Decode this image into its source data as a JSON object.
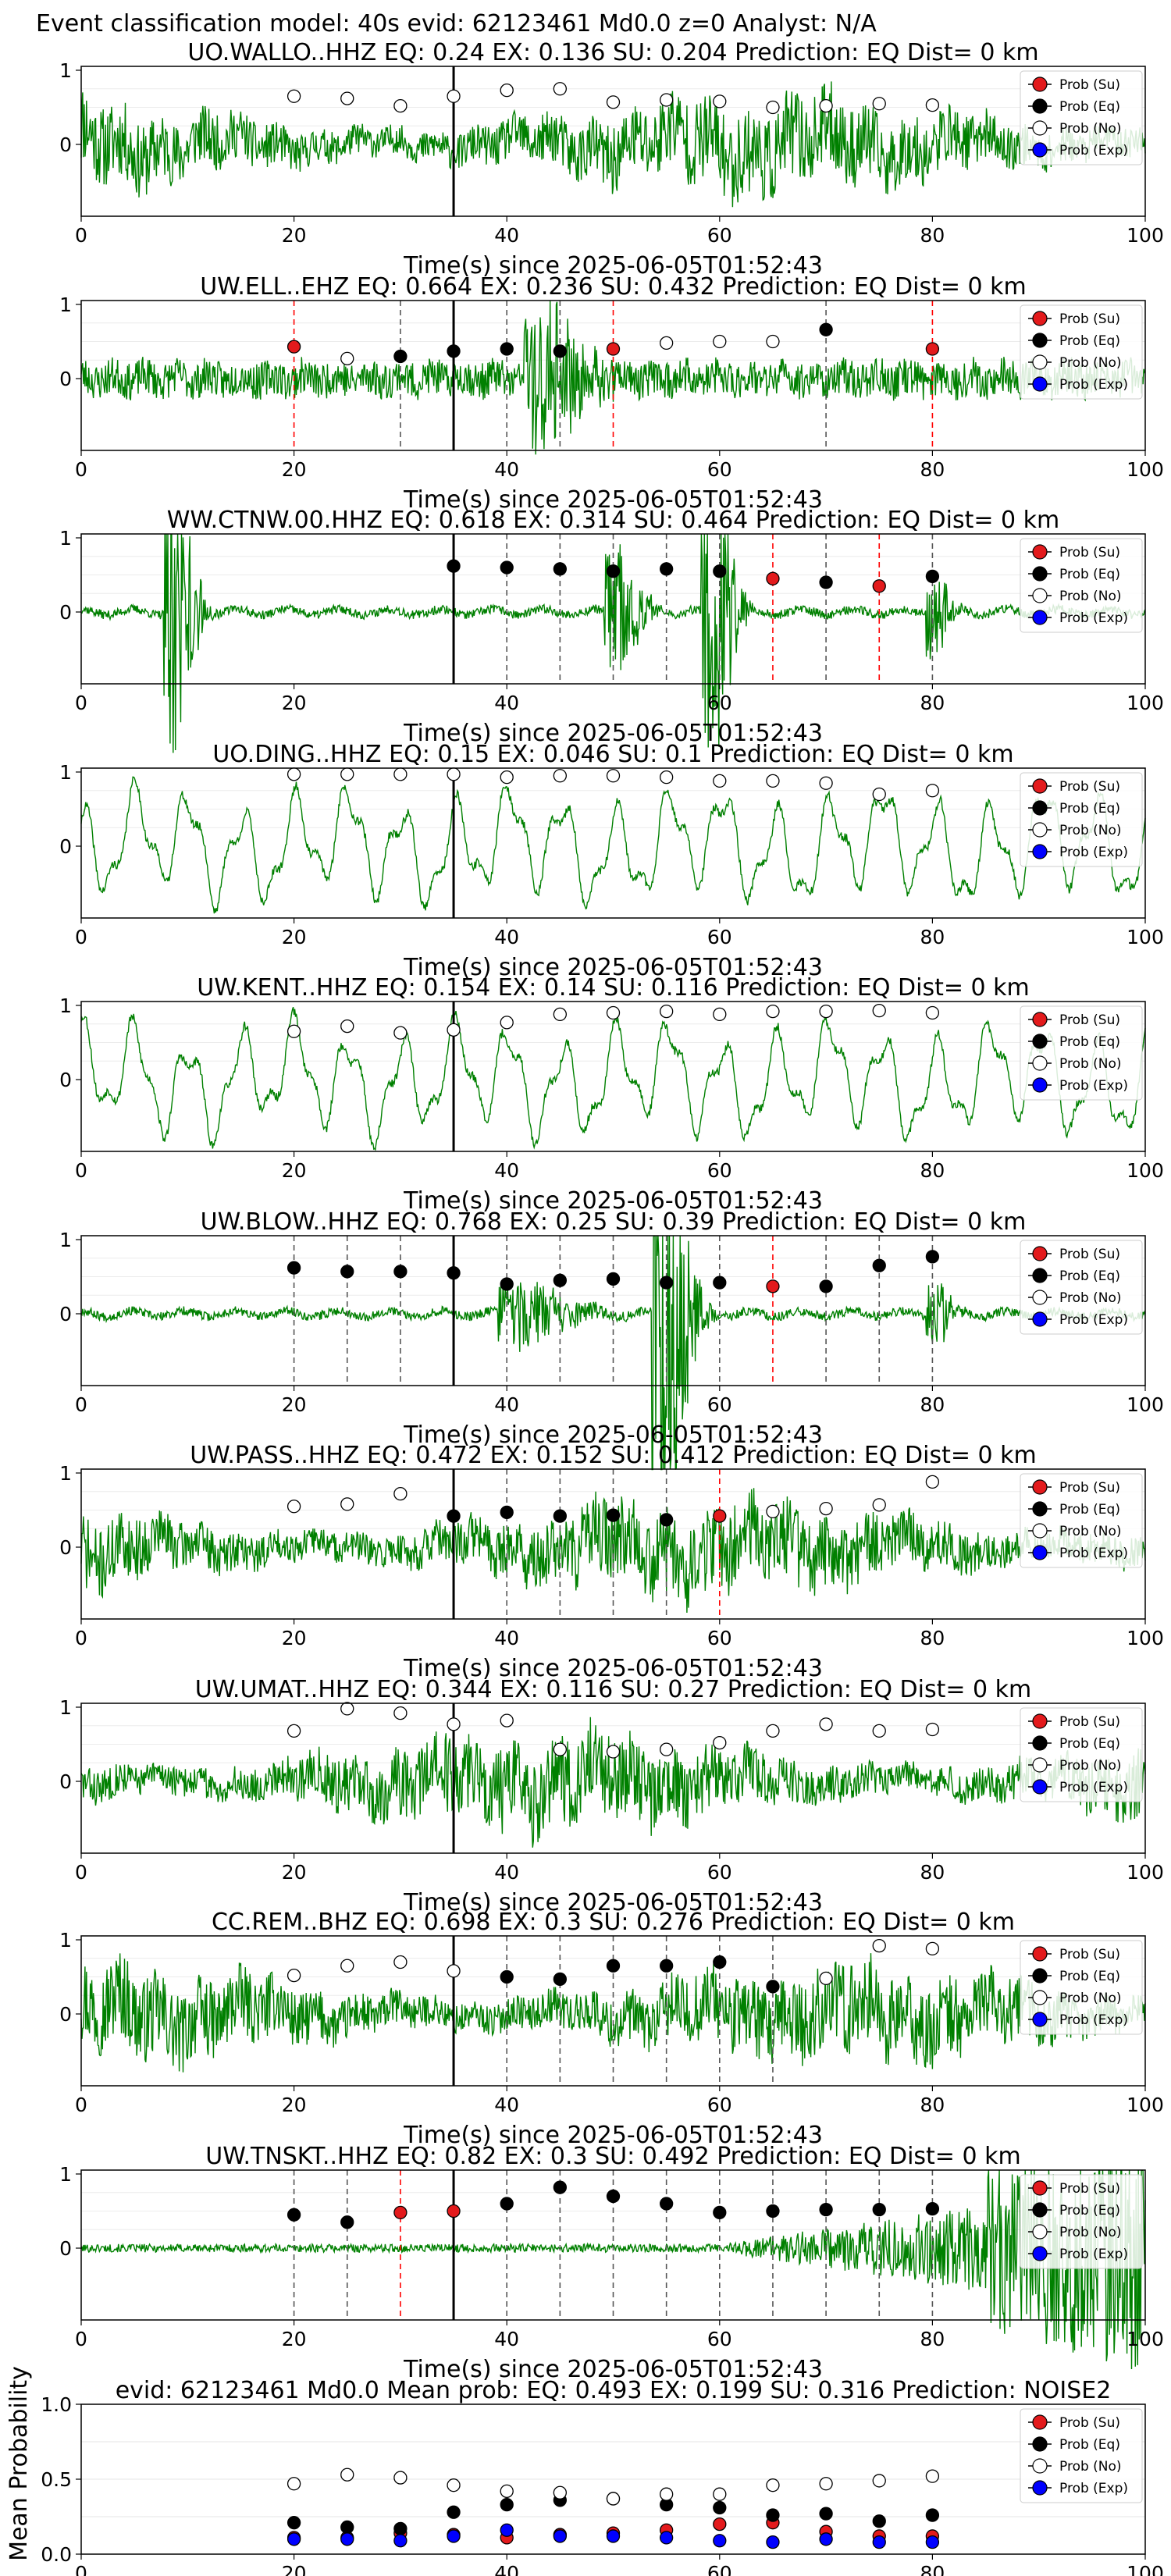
{
  "figure_title": "Event classification model: 40s evid: 62123461 Md0.0 z=0 Analyst: N/A",
  "colors": {
    "waveform": "#008000",
    "su": "#e31a1c",
    "eq": "#000000",
    "no": "#ffffff",
    "exp": "#0000ff",
    "pick_eq": "#555555",
    "pick_su": "#ff0000",
    "origin": "#000000"
  },
  "legend": [
    "Prob (Su)",
    "Prob (Eq)",
    "Prob (No)",
    "Prob (Exp)"
  ],
  "xlabel": "Time(s) since 2025-06-05T01:52:43",
  "chart_data": [
    {
      "type": "line",
      "title": "UO.WALLO..HHZ   EQ: 0.24   EX: 0.136   SU: 0.204   Prediction: EQ    Dist= 0 km",
      "xlim": [
        0,
        100
      ],
      "yticks": [
        "0",
        "1"
      ],
      "origin": 35,
      "noise": "high",
      "seed": 11,
      "events": [],
      "picks": [],
      "points": [
        [
          "no",
          20,
          0.65
        ],
        [
          "no",
          25,
          0.62
        ],
        [
          "no",
          30,
          0.52
        ],
        [
          "no",
          35,
          0.65
        ],
        [
          "no",
          40,
          0.73
        ],
        [
          "no",
          45,
          0.75
        ],
        [
          "no",
          50,
          0.57
        ],
        [
          "no",
          55,
          0.6
        ],
        [
          "no",
          60,
          0.58
        ],
        [
          "no",
          65,
          0.5
        ],
        [
          "no",
          70,
          0.52
        ],
        [
          "no",
          75,
          0.55
        ],
        [
          "no",
          80,
          0.53
        ]
      ]
    },
    {
      "type": "line",
      "title": "UW.ELL..EHZ   EQ: 0.664   EX: 0.236   SU: 0.432   Prediction: EQ    Dist= 0 km",
      "xlim": [
        0,
        100
      ],
      "yticks": [
        "0",
        "1"
      ],
      "origin": 35,
      "noise": "mid",
      "seed": 23,
      "events": [
        [
          43,
          5,
          4
        ]
      ],
      "picks": [
        [
          "su",
          20
        ],
        [
          "eq",
          30
        ],
        [
          "eq",
          40
        ],
        [
          "eq",
          45
        ],
        [
          "su",
          50
        ],
        [
          "eq",
          70
        ],
        [
          "su",
          80
        ]
      ],
      "points": [
        [
          "su",
          20,
          0.43
        ],
        [
          "no",
          25,
          0.27
        ],
        [
          "eq",
          30,
          0.3
        ],
        [
          "eq",
          35,
          0.37
        ],
        [
          "eq",
          40,
          0.4
        ],
        [
          "eq",
          45,
          0.37
        ],
        [
          "su",
          50,
          0.4
        ],
        [
          "no",
          55,
          0.48
        ],
        [
          "no",
          60,
          0.5
        ],
        [
          "no",
          65,
          0.5
        ],
        [
          "eq",
          70,
          0.66
        ],
        [
          "su",
          80,
          0.4
        ]
      ]
    },
    {
      "type": "line",
      "title": "WW.CTNW.00.HHZ   EQ: 0.618   EX: 0.314   SU: 0.464   Prediction: EQ    Dist= 0 km",
      "xlim": [
        0,
        100
      ],
      "yticks": [
        "0",
        "1"
      ],
      "origin": 35,
      "noise": "quiet",
      "seed": 37,
      "events": [
        [
          8.5,
          2.5,
          8
        ],
        [
          50,
          3,
          4
        ],
        [
          59,
          2.5,
          9
        ],
        [
          80,
          2,
          2.5
        ]
      ],
      "picks": [
        [
          "eq",
          35
        ],
        [
          "eq",
          40
        ],
        [
          "eq",
          45
        ],
        [
          "eq",
          50
        ],
        [
          "eq",
          55
        ],
        [
          "eq",
          60
        ],
        [
          "su",
          65
        ],
        [
          "eq",
          70
        ],
        [
          "su",
          75
        ],
        [
          "eq",
          80
        ]
      ],
      "points": [
        [
          "eq",
          35,
          0.62
        ],
        [
          "eq",
          40,
          0.6
        ],
        [
          "eq",
          45,
          0.58
        ],
        [
          "eq",
          50,
          0.55
        ],
        [
          "eq",
          55,
          0.58
        ],
        [
          "eq",
          60,
          0.55
        ],
        [
          "su",
          65,
          0.45
        ],
        [
          "eq",
          70,
          0.4
        ],
        [
          "su",
          75,
          0.35
        ],
        [
          "eq",
          80,
          0.48
        ]
      ]
    },
    {
      "type": "line",
      "title": "UO.DING..HHZ   EQ: 0.15   EX: 0.046   SU: 0.1   Prediction: EQ    Dist= 0 km",
      "xlim": [
        0,
        100
      ],
      "yticks": [
        "0",
        "1"
      ],
      "origin": 35,
      "noise": "wave",
      "seed": 41,
      "events": [],
      "picks": [],
      "points": [
        [
          "no",
          20,
          0.97
        ],
        [
          "no",
          25,
          0.97
        ],
        [
          "no",
          30,
          0.97
        ],
        [
          "no",
          35,
          0.97
        ],
        [
          "no",
          40,
          0.93
        ],
        [
          "no",
          45,
          0.95
        ],
        [
          "no",
          50,
          0.95
        ],
        [
          "no",
          55,
          0.93
        ],
        [
          "no",
          60,
          0.88
        ],
        [
          "no",
          65,
          0.88
        ],
        [
          "no",
          70,
          0.85
        ],
        [
          "no",
          75,
          0.7
        ],
        [
          "no",
          80,
          0.75
        ]
      ]
    },
    {
      "type": "line",
      "title": "UW.KENT..HHZ   EQ: 0.154   EX: 0.14   SU: 0.116   Prediction: EQ    Dist= 0 km",
      "xlim": [
        0,
        100
      ],
      "yticks": [
        "0",
        "1"
      ],
      "origin": 35,
      "noise": "wave",
      "seed": 53,
      "events": [],
      "picks": [],
      "points": [
        [
          "no",
          20,
          0.65
        ],
        [
          "no",
          25,
          0.72
        ],
        [
          "no",
          30,
          0.63
        ],
        [
          "no",
          35,
          0.67
        ],
        [
          "no",
          40,
          0.77
        ],
        [
          "no",
          45,
          0.88
        ],
        [
          "no",
          50,
          0.9
        ],
        [
          "no",
          55,
          0.92
        ],
        [
          "no",
          60,
          0.88
        ],
        [
          "no",
          65,
          0.92
        ],
        [
          "no",
          70,
          0.92
        ],
        [
          "no",
          75,
          0.93
        ],
        [
          "no",
          80,
          0.9
        ]
      ]
    },
    {
      "type": "line",
      "title": "UW.BLOW..HHZ   EQ: 0.768   EX: 0.25   SU: 0.39   Prediction: EQ    Dist= 0 km",
      "xlim": [
        0,
        100
      ],
      "yticks": [
        "0",
        "1"
      ],
      "origin": 35,
      "noise": "quiet",
      "seed": 67,
      "events": [
        [
          54.5,
          3,
          12
        ],
        [
          41,
          6,
          1.8
        ],
        [
          80,
          2,
          2
        ]
      ],
      "picks": [
        [
          "eq",
          20
        ],
        [
          "eq",
          25
        ],
        [
          "eq",
          30
        ],
        [
          "eq",
          35
        ],
        [
          "eq",
          40
        ],
        [
          "eq",
          45
        ],
        [
          "eq",
          50
        ],
        [
          "eq",
          55
        ],
        [
          "eq",
          60
        ],
        [
          "su",
          65
        ],
        [
          "eq",
          70
        ],
        [
          "eq",
          75
        ],
        [
          "eq",
          80
        ]
      ],
      "points": [
        [
          "eq",
          20,
          0.62
        ],
        [
          "eq",
          25,
          0.57
        ],
        [
          "eq",
          30,
          0.57
        ],
        [
          "eq",
          35,
          0.55
        ],
        [
          "eq",
          40,
          0.4
        ],
        [
          "eq",
          45,
          0.45
        ],
        [
          "eq",
          50,
          0.47
        ],
        [
          "eq",
          55,
          0.42
        ],
        [
          "eq",
          60,
          0.42
        ],
        [
          "su",
          65,
          0.37
        ],
        [
          "eq",
          70,
          0.37
        ],
        [
          "eq",
          75,
          0.65
        ],
        [
          "eq",
          80,
          0.77
        ]
      ]
    },
    {
      "type": "line",
      "title": "UW.PASS..HHZ   EQ: 0.472   EX: 0.152   SU: 0.412   Prediction: EQ    Dist= 0 km",
      "xlim": [
        0,
        100
      ],
      "yticks": [
        "0",
        "1"
      ],
      "origin": 35,
      "noise": "high",
      "seed": 71,
      "events": [],
      "picks": [
        [
          "eq",
          35
        ],
        [
          "eq",
          40
        ],
        [
          "eq",
          45
        ],
        [
          "eq",
          50
        ],
        [
          "eq",
          55
        ],
        [
          "su",
          60
        ]
      ],
      "points": [
        [
          "no",
          20,
          0.55
        ],
        [
          "no",
          25,
          0.58
        ],
        [
          "no",
          30,
          0.72
        ],
        [
          "eq",
          35,
          0.42
        ],
        [
          "eq",
          40,
          0.47
        ],
        [
          "eq",
          45,
          0.42
        ],
        [
          "eq",
          50,
          0.43
        ],
        [
          "eq",
          55,
          0.37
        ],
        [
          "su",
          60,
          0.42
        ],
        [
          "no",
          65,
          0.48
        ],
        [
          "no",
          70,
          0.52
        ],
        [
          "no",
          75,
          0.57
        ],
        [
          "no",
          80,
          0.88
        ]
      ]
    },
    {
      "type": "line",
      "title": "UW.UMAT..HHZ   EQ: 0.344   EX: 0.116   SU: 0.27   Prediction: EQ    Dist= 0 km",
      "xlim": [
        0,
        100
      ],
      "yticks": [
        "0",
        "1"
      ],
      "origin": 35,
      "noise": "high",
      "seed": 83,
      "events": [],
      "picks": [],
      "points": [
        [
          "no",
          20,
          0.68
        ],
        [
          "no",
          25,
          0.98
        ],
        [
          "no",
          30,
          0.92
        ],
        [
          "no",
          35,
          0.77
        ],
        [
          "no",
          40,
          0.82
        ],
        [
          "no",
          45,
          0.43
        ],
        [
          "no",
          50,
          0.4
        ],
        [
          "no",
          55,
          0.43
        ],
        [
          "no",
          60,
          0.52
        ],
        [
          "no",
          65,
          0.68
        ],
        [
          "no",
          70,
          0.77
        ],
        [
          "no",
          75,
          0.68
        ],
        [
          "no",
          80,
          0.7
        ]
      ]
    },
    {
      "type": "line",
      "title": "CC.REM..BHZ   EQ: 0.698   EX: 0.3   SU: 0.276   Prediction: EQ    Dist= 0 km",
      "xlim": [
        0,
        100
      ],
      "yticks": [
        "0",
        "1"
      ],
      "origin": 35,
      "noise": "high",
      "seed": 97,
      "events": [],
      "picks": [
        [
          "eq",
          40
        ],
        [
          "eq",
          45
        ],
        [
          "eq",
          50
        ],
        [
          "eq",
          55
        ],
        [
          "eq",
          60
        ],
        [
          "eq",
          65
        ]
      ],
      "points": [
        [
          "no",
          20,
          0.52
        ],
        [
          "no",
          25,
          0.65
        ],
        [
          "no",
          30,
          0.7
        ],
        [
          "no",
          35,
          0.58
        ],
        [
          "eq",
          40,
          0.5
        ],
        [
          "eq",
          45,
          0.47
        ],
        [
          "eq",
          50,
          0.65
        ],
        [
          "eq",
          55,
          0.65
        ],
        [
          "eq",
          60,
          0.7
        ],
        [
          "eq",
          65,
          0.37
        ],
        [
          "no",
          70,
          0.48
        ],
        [
          "no",
          75,
          0.92
        ],
        [
          "no",
          80,
          0.88
        ]
      ]
    },
    {
      "type": "line",
      "title": "UW.TNSKT..HHZ   EQ: 0.82   EX: 0.3   SU: 0.492   Prediction: EQ    Dist= 0 km",
      "xlim": [
        0,
        100
      ],
      "yticks": [
        "0",
        "1"
      ],
      "origin": 35,
      "noise": "tnskt",
      "seed": 101,
      "events": [],
      "picks": [
        [
          "eq",
          20
        ],
        [
          "eq",
          25
        ],
        [
          "su",
          30
        ],
        [
          "eq",
          40
        ],
        [
          "eq",
          45
        ],
        [
          "eq",
          50
        ],
        [
          "eq",
          55
        ],
        [
          "eq",
          60
        ],
        [
          "eq",
          65
        ],
        [
          "eq",
          70
        ],
        [
          "eq",
          75
        ],
        [
          "eq",
          80
        ]
      ],
      "points": [
        [
          "eq",
          20,
          0.45
        ],
        [
          "eq",
          25,
          0.35
        ],
        [
          "su",
          30,
          0.48
        ],
        [
          "su",
          35,
          0.5
        ],
        [
          "eq",
          40,
          0.6
        ],
        [
          "eq",
          45,
          0.82
        ],
        [
          "eq",
          50,
          0.7
        ],
        [
          "eq",
          55,
          0.6
        ],
        [
          "eq",
          60,
          0.48
        ],
        [
          "eq",
          65,
          0.5
        ],
        [
          "eq",
          70,
          0.52
        ],
        [
          "eq",
          75,
          0.52
        ],
        [
          "eq",
          80,
          0.53
        ]
      ]
    },
    {
      "type": "scatter",
      "title": "evid: 62123461  Md0.0   Mean prob:   EQ: 0.493  EX: 0.199  SU: 0.316   Prediction: NOISE2",
      "ylabel": "Mean Probability",
      "xlim": [
        0,
        100
      ],
      "ylim": [
        0,
        1
      ],
      "yticks": [
        "0.0",
        "0.5",
        "1.0"
      ],
      "xticks": [
        "0",
        "20",
        "40",
        "60",
        "80",
        "100"
      ],
      "series": [
        {
          "name": "Prob (Su)",
          "key": "su",
          "x": [
            20,
            25,
            30,
            35,
            40,
            45,
            50,
            55,
            60,
            65,
            70,
            75,
            80
          ],
          "y": [
            0.11,
            0.11,
            0.14,
            0.13,
            0.11,
            0.13,
            0.14,
            0.16,
            0.2,
            0.21,
            0.15,
            0.12,
            0.12
          ]
        },
        {
          "name": "Prob (Eq)",
          "key": "eq",
          "x": [
            20,
            25,
            30,
            35,
            40,
            45,
            50,
            55,
            60,
            65,
            70,
            75,
            80
          ],
          "y": [
            0.21,
            0.18,
            0.17,
            0.28,
            0.33,
            0.36,
            0.37,
            0.33,
            0.31,
            0.26,
            0.27,
            0.22,
            0.26
          ]
        },
        {
          "name": "Prob (No)",
          "key": "no",
          "x": [
            20,
            25,
            30,
            35,
            40,
            45,
            50,
            55,
            60,
            65,
            70,
            75,
            80
          ],
          "y": [
            0.47,
            0.53,
            0.51,
            0.46,
            0.42,
            0.41,
            0.37,
            0.4,
            0.4,
            0.46,
            0.47,
            0.49,
            0.52
          ]
        },
        {
          "name": "Prob (Exp)",
          "key": "exp",
          "x": [
            20,
            25,
            30,
            35,
            40,
            45,
            50,
            55,
            60,
            65,
            70,
            75,
            80
          ],
          "y": [
            0.1,
            0.1,
            0.09,
            0.12,
            0.16,
            0.12,
            0.12,
            0.11,
            0.09,
            0.08,
            0.1,
            0.08,
            0.08
          ]
        }
      ]
    }
  ]
}
